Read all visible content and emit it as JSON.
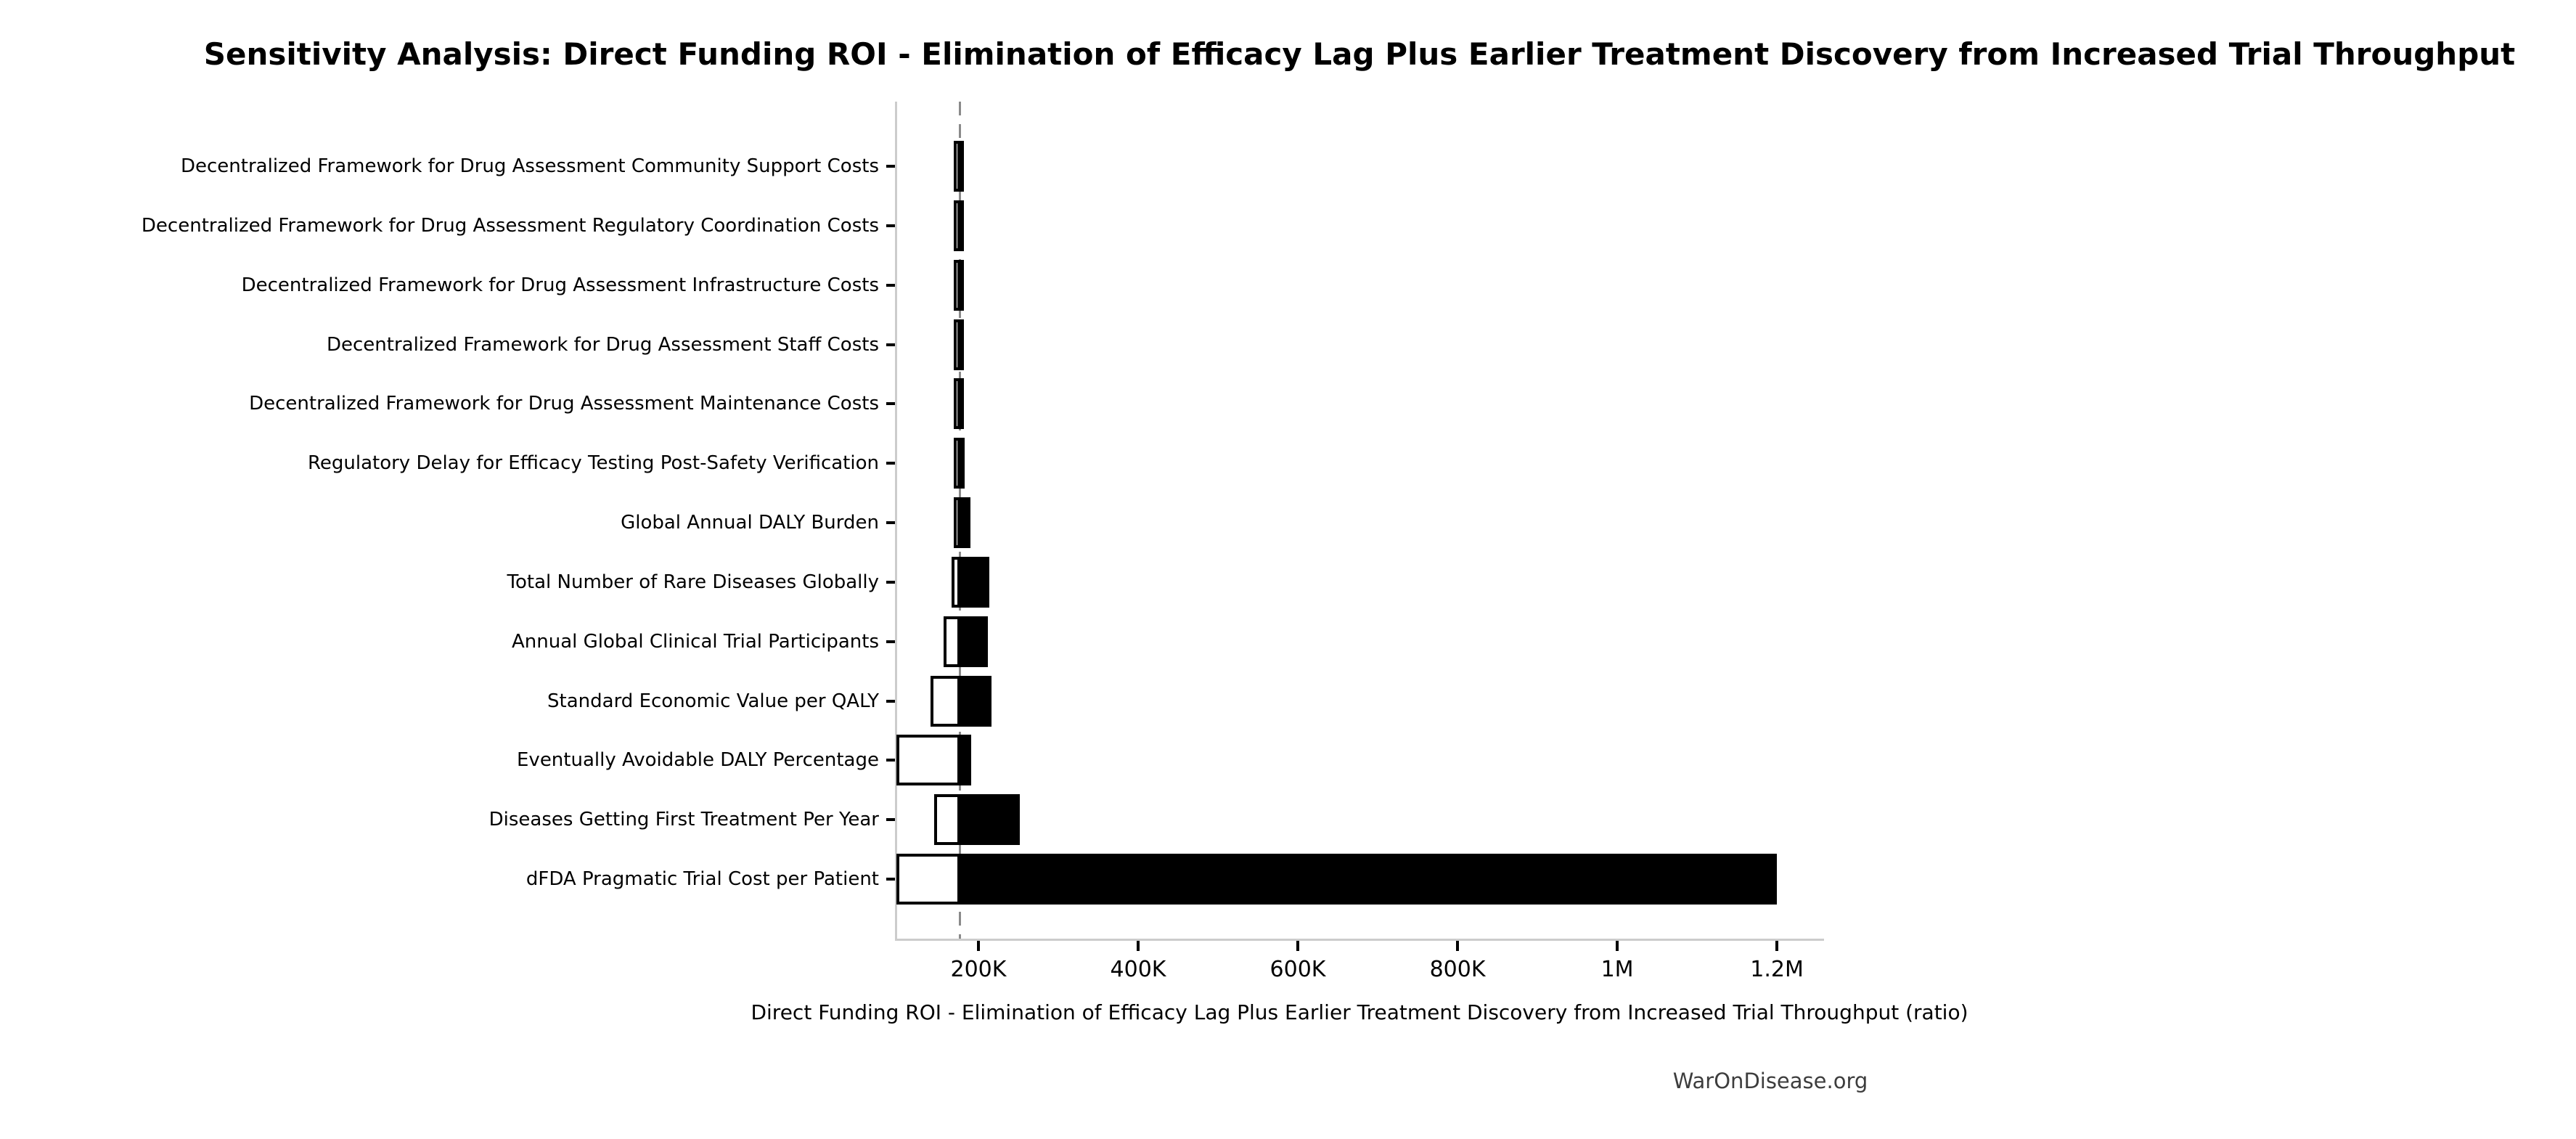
{
  "footer": {
    "watermark": "WarOnDisease.org"
  },
  "chart_data": {
    "type": "bar",
    "subtype": "tornado_sensitivity",
    "orientation": "horizontal",
    "title": "Sensitivity Analysis: Direct Funding ROI - Elimination of Efficacy Lag Plus Earlier Treatment Discovery from Increased Trial Throughput",
    "xlabel": "Direct Funding ROI - Elimination of Efficacy Lag Plus Earlier Treatment Discovery from Increased Trial Throughput (ratio)",
    "ylabel": "",
    "baseline_value": 177300,
    "xlim": [
      95500,
      1259000
    ],
    "grid": false,
    "legend": "none",
    "x_ticks": [
      {
        "value": 200000,
        "label": "200K"
      },
      {
        "value": 400000,
        "label": "400K"
      },
      {
        "value": 600000,
        "label": "600K"
      },
      {
        "value": 800000,
        "label": "800K"
      },
      {
        "value": 1000000,
        "label": "1M"
      },
      {
        "value": 1200000,
        "label": "1.2M"
      }
    ],
    "categories": [
      "Decentralized Framework for Drug Assessment Community Support Costs",
      "Decentralized Framework for Drug Assessment Regulatory Coordination Costs",
      "Decentralized Framework for Drug Assessment Infrastructure Costs",
      "Decentralized Framework for Drug Assessment Staff Costs",
      "Decentralized Framework for Drug Assessment Maintenance Costs",
      "Regulatory Delay for Efficacy Testing Post-Safety Verification",
      "Global Annual DALY Burden",
      "Total Number of Rare Diseases Globally",
      "Annual Global Clinical Trial Participants",
      "Standard Economic Value per QALY",
      "Eventually Avoidable DALY Percentage",
      "Diseases Getting First Treatment Per Year",
      "dFDA Pragmatic Trial Cost per Patient"
    ],
    "series": [
      {
        "name": "low_estimate_roi",
        "values": [
          176300,
          176200,
          176100,
          176000,
          175900,
          174000,
          169000,
          166000,
          156500,
          140000,
          97500,
          145000,
          97500
        ]
      },
      {
        "name": "high_estimate_roi",
        "values": [
          180700,
          180800,
          180900,
          181000,
          181100,
          183000,
          190000,
          213500,
          211500,
          216500,
          191000,
          252000,
          1200000
        ]
      }
    ],
    "colors": {
      "low_bar_fill": "#ffffff",
      "high_bar_fill": "#000000",
      "bar_edge": "#000000",
      "baseline_line": "#8a8a8a",
      "spine": "#cccccc",
      "tick_mark": "#000000",
      "text": "#000000",
      "watermark_text": "#3d3d3d"
    }
  }
}
